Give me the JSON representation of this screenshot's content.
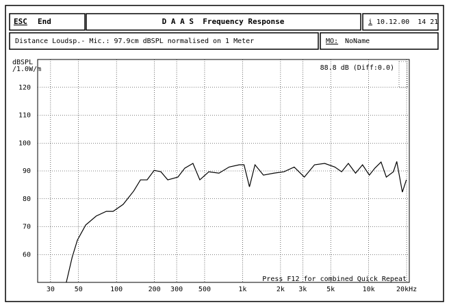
{
  "header": {
    "esc_key": "ESC",
    "esc_label": "End",
    "title": "D A A S  Frequency Response",
    "info_key": "i",
    "datetime": "10.12.00  14 21"
  },
  "info": {
    "distance": "Distance Loudsp.- Mic.: 97.9cm dBSPL normalised on 1 Meter",
    "mo_key": "MO:",
    "mo_value": "NoName"
  },
  "chart_data": {
    "type": "line",
    "y_label_1": "dBSPL",
    "y_label_2": "/1.0W/m",
    "annotation": "88.8 dB (Diff:0.0)",
    "footer": "Press F12 for combined Quick Repeat",
    "log_x": true,
    "grid": true,
    "color": "#000000",
    "xlim": [
      23.7,
      21000
    ],
    "ylim": [
      50,
      130
    ],
    "xticks": [
      30,
      50,
      100,
      200,
      300,
      500,
      {
        "value": 1000,
        "label": "1k"
      },
      {
        "value": 2000,
        "label": "2k"
      },
      {
        "value": 3000,
        "label": "3k"
      },
      {
        "value": 5000,
        "label": "5k"
      },
      {
        "value": 10000,
        "label": "10k"
      },
      {
        "value": 20000,
        "label": "20kHz"
      }
    ],
    "yticks": [
      60,
      70,
      80,
      90,
      100,
      110,
      120
    ],
    "x": [
      40,
      44.5,
      49,
      57,
      69,
      83,
      94,
      113,
      137,
      155,
      175,
      199,
      225,
      255,
      307,
      348,
      404,
      458,
      540,
      650,
      782,
      941,
      1027,
      1134,
      1254,
      1463,
      1770,
      2131,
      2567,
      3088,
      3720,
      4480,
      5390,
      6100,
      6900,
      7870,
      8940,
      10120,
      11200,
      12540,
      13800,
      15700,
      16700,
      18500,
      19900
    ],
    "values": [
      50,
      59,
      65.2,
      70.6,
      73.8,
      75.5,
      75.5,
      78,
      82.8,
      86.8,
      86.8,
      90.2,
      89.7,
      86.8,
      87.8,
      91,
      92.7,
      86.8,
      89.7,
      89.2,
      91.4,
      92.2,
      92.2,
      84.3,
      92.2,
      88.5,
      89.2,
      89.7,
      91.4,
      87.8,
      92.2,
      92.7,
      91.4,
      89.7,
      92.7,
      89.2,
      92.2,
      88.5,
      91,
      93.2,
      87.8,
      89.7,
      93.4,
      82.4,
      86.8
    ]
  }
}
